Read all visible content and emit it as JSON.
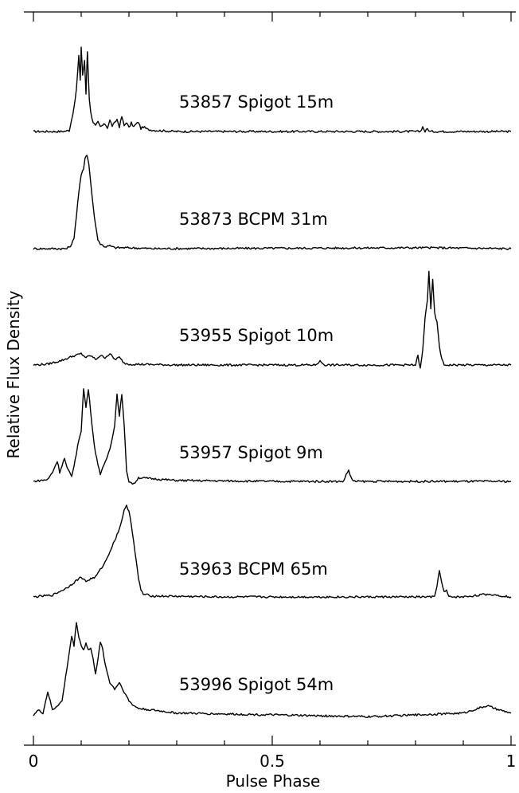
{
  "chart_data": {
    "type": "line",
    "xlabel": "Pulse Phase",
    "ylabel": "Relative Flux Density",
    "xlim": [
      0,
      1
    ],
    "x_ticks": [
      "0",
      "0.5",
      "1"
    ],
    "series": [
      {
        "name": "53857 Spigot 15m",
        "points": [
          [
            0,
            0
          ],
          [
            0.06,
            0
          ],
          [
            0.075,
            0.01
          ],
          [
            0.085,
            0.25
          ],
          [
            0.09,
            0.45
          ],
          [
            0.095,
            0.8
          ],
          [
            0.098,
            0.55
          ],
          [
            0.1,
            0.9
          ],
          [
            0.103,
            0.6
          ],
          [
            0.107,
            0.75
          ],
          [
            0.11,
            0.4
          ],
          [
            0.113,
            0.85
          ],
          [
            0.117,
            0.35
          ],
          [
            0.12,
            0.2
          ],
          [
            0.125,
            0.1
          ],
          [
            0.13,
            0.06
          ],
          [
            0.135,
            0.1
          ],
          [
            0.14,
            0.05
          ],
          [
            0.15,
            0.08
          ],
          [
            0.155,
            0.04
          ],
          [
            0.16,
            0.12
          ],
          [
            0.165,
            0.06
          ],
          [
            0.17,
            0.09
          ],
          [
            0.175,
            0.13
          ],
          [
            0.18,
            0.05
          ],
          [
            0.185,
            0.16
          ],
          [
            0.19,
            0.06
          ],
          [
            0.195,
            0.1
          ],
          [
            0.2,
            0.04
          ],
          [
            0.205,
            0.09
          ],
          [
            0.21,
            0.05
          ],
          [
            0.215,
            0.08
          ],
          [
            0.22,
            0.1
          ],
          [
            0.225,
            0.03
          ],
          [
            0.23,
            0.05
          ],
          [
            0.24,
            0.02
          ],
          [
            0.26,
            0.01
          ],
          [
            0.3,
            0
          ],
          [
            0.5,
            0
          ],
          [
            0.81,
            0
          ],
          [
            0.815,
            0.05
          ],
          [
            0.82,
            0
          ],
          [
            0.825,
            0.03
          ],
          [
            0.83,
            0
          ],
          [
            1,
            0
          ]
        ]
      },
      {
        "name": "53873 BCPM 31m",
        "points": [
          [
            0,
            0
          ],
          [
            0.07,
            0
          ],
          [
            0.08,
            0.04
          ],
          [
            0.085,
            0.12
          ],
          [
            0.09,
            0.35
          ],
          [
            0.095,
            0.6
          ],
          [
            0.1,
            0.78
          ],
          [
            0.105,
            0.85
          ],
          [
            0.108,
            0.97
          ],
          [
            0.112,
            1.0
          ],
          [
            0.116,
            0.9
          ],
          [
            0.12,
            0.7
          ],
          [
            0.125,
            0.45
          ],
          [
            0.13,
            0.25
          ],
          [
            0.135,
            0.1
          ],
          [
            0.14,
            0.05
          ],
          [
            0.15,
            0.02
          ],
          [
            0.16,
            0.03
          ],
          [
            0.17,
            0.01
          ],
          [
            0.2,
            0.01
          ],
          [
            0.25,
            0
          ],
          [
            0.83,
            0.01
          ],
          [
            1,
            0
          ]
        ]
      },
      {
        "name": "53955 Spigot 10m",
        "points": [
          [
            0,
            0
          ],
          [
            0.03,
            0.01
          ],
          [
            0.06,
            0.05
          ],
          [
            0.08,
            0.09
          ],
          [
            0.1,
            0.12
          ],
          [
            0.11,
            0.08
          ],
          [
            0.12,
            0.1
          ],
          [
            0.13,
            0.06
          ],
          [
            0.14,
            0.1
          ],
          [
            0.15,
            0.08
          ],
          [
            0.16,
            0.12
          ],
          [
            0.17,
            0.06
          ],
          [
            0.18,
            0.08
          ],
          [
            0.19,
            0.02
          ],
          [
            0.2,
            0.01
          ],
          [
            0.3,
            0
          ],
          [
            0.59,
            0
          ],
          [
            0.6,
            0.04
          ],
          [
            0.61,
            0
          ],
          [
            0.8,
            0
          ],
          [
            0.805,
            0.1
          ],
          [
            0.81,
            -0.04
          ],
          [
            0.815,
            0.15
          ],
          [
            0.82,
            0.5
          ],
          [
            0.825,
            0.7
          ],
          [
            0.828,
            1.0
          ],
          [
            0.832,
            0.6
          ],
          [
            0.836,
            0.9
          ],
          [
            0.84,
            0.55
          ],
          [
            0.845,
            0.45
          ],
          [
            0.85,
            0.2
          ],
          [
            0.855,
            0.06
          ],
          [
            0.86,
            0
          ],
          [
            1,
            0
          ]
        ]
      },
      {
        "name": "53957 Spigot 9m",
        "points": [
          [
            0,
            0
          ],
          [
            0.03,
            0.02
          ],
          [
            0.04,
            0.1
          ],
          [
            0.05,
            0.22
          ],
          [
            0.055,
            0.1
          ],
          [
            0.065,
            0.25
          ],
          [
            0.07,
            0.15
          ],
          [
            0.08,
            0.05
          ],
          [
            0.09,
            0.3
          ],
          [
            0.095,
            0.45
          ],
          [
            0.1,
            0.55
          ],
          [
            0.105,
            1.0
          ],
          [
            0.11,
            0.8
          ],
          [
            0.115,
            1.0
          ],
          [
            0.12,
            0.75
          ],
          [
            0.125,
            0.5
          ],
          [
            0.13,
            0.3
          ],
          [
            0.14,
            0.08
          ],
          [
            0.15,
            0.2
          ],
          [
            0.16,
            0.35
          ],
          [
            0.17,
            0.6
          ],
          [
            0.175,
            0.95
          ],
          [
            0.18,
            0.7
          ],
          [
            0.185,
            0.95
          ],
          [
            0.19,
            0.6
          ],
          [
            0.195,
            0.12
          ],
          [
            0.2,
            0
          ],
          [
            0.21,
            -0.03
          ],
          [
            0.22,
            0.04
          ],
          [
            0.3,
            0.01
          ],
          [
            0.5,
            0
          ],
          [
            0.65,
            0
          ],
          [
            0.655,
            0.08
          ],
          [
            0.66,
            0.12
          ],
          [
            0.665,
            0.04
          ],
          [
            0.67,
            0
          ],
          [
            1,
            0
          ]
        ]
      },
      {
        "name": "53963 BCPM 65m",
        "points": [
          [
            0,
            0
          ],
          [
            0.04,
            0.02
          ],
          [
            0.07,
            0.1
          ],
          [
            0.09,
            0.18
          ],
          [
            0.1,
            0.22
          ],
          [
            0.11,
            0.17
          ],
          [
            0.12,
            0.2
          ],
          [
            0.13,
            0.22
          ],
          [
            0.14,
            0.3
          ],
          [
            0.15,
            0.38
          ],
          [
            0.16,
            0.5
          ],
          [
            0.17,
            0.62
          ],
          [
            0.18,
            0.75
          ],
          [
            0.185,
            0.85
          ],
          [
            0.19,
            0.95
          ],
          [
            0.195,
            1.0
          ],
          [
            0.2,
            0.95
          ],
          [
            0.205,
            0.8
          ],
          [
            0.21,
            0.6
          ],
          [
            0.215,
            0.4
          ],
          [
            0.22,
            0.2
          ],
          [
            0.225,
            0.08
          ],
          [
            0.23,
            0.03
          ],
          [
            0.25,
            0.01
          ],
          [
            0.4,
            0
          ],
          [
            0.84,
            0
          ],
          [
            0.845,
            0.12
          ],
          [
            0.85,
            0.3
          ],
          [
            0.855,
            0.15
          ],
          [
            0.86,
            0.05
          ],
          [
            0.865,
            0.07
          ],
          [
            0.87,
            0
          ],
          [
            0.9,
            0
          ],
          [
            0.95,
            0.03
          ],
          [
            0.97,
            0.02
          ],
          [
            1,
            0
          ]
        ]
      },
      {
        "name": "53996 Spigot 54m",
        "points": [
          [
            0,
            0
          ],
          [
            0.01,
            0.05
          ],
          [
            0.02,
            0.02
          ],
          [
            0.03,
            0.25
          ],
          [
            0.035,
            0.15
          ],
          [
            0.04,
            0.05
          ],
          [
            0.05,
            0.1
          ],
          [
            0.06,
            0.15
          ],
          [
            0.07,
            0.5
          ],
          [
            0.08,
            0.85
          ],
          [
            0.085,
            0.75
          ],
          [
            0.09,
            1.0
          ],
          [
            0.095,
            0.85
          ],
          [
            0.1,
            0.75
          ],
          [
            0.105,
            0.7
          ],
          [
            0.11,
            0.78
          ],
          [
            0.115,
            0.7
          ],
          [
            0.12,
            0.72
          ],
          [
            0.125,
            0.6
          ],
          [
            0.13,
            0.45
          ],
          [
            0.135,
            0.6
          ],
          [
            0.14,
            0.78
          ],
          [
            0.145,
            0.72
          ],
          [
            0.15,
            0.55
          ],
          [
            0.16,
            0.35
          ],
          [
            0.17,
            0.28
          ],
          [
            0.18,
            0.35
          ],
          [
            0.19,
            0.25
          ],
          [
            0.2,
            0.15
          ],
          [
            0.21,
            0.1
          ],
          [
            0.22,
            0.07
          ],
          [
            0.3,
            0.02
          ],
          [
            0.5,
            0
          ],
          [
            0.7,
            -0.02
          ],
          [
            0.8,
            0
          ],
          [
            0.9,
            0.02
          ],
          [
            0.95,
            0.1
          ],
          [
            0.97,
            0.06
          ],
          [
            1,
            0.02
          ]
        ]
      }
    ]
  }
}
